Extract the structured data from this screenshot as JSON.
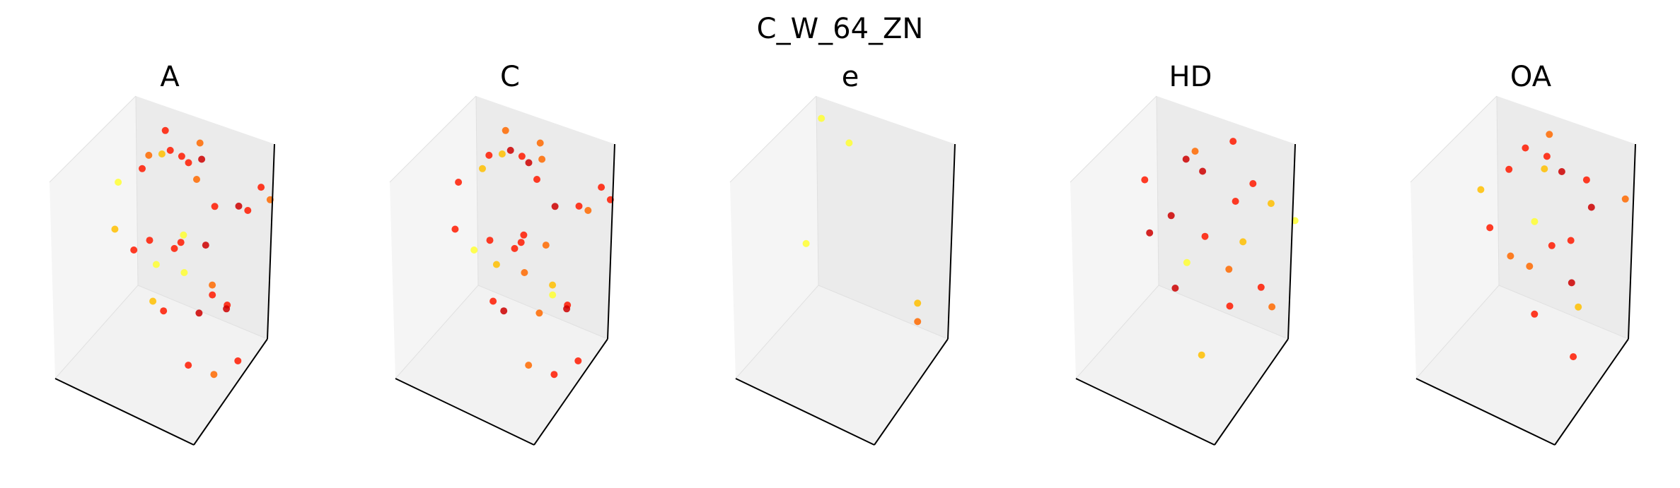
{
  "figure": {
    "title": "C_W_64_ZN"
  },
  "chart_data": [
    {
      "type": "scatter",
      "title": "A",
      "grid": false,
      "colors": [
        "#ffff33",
        "#ffbf00",
        "#ff6a00",
        "#ff1a00",
        "#cc0000"
      ],
      "points": [
        [
          -0.6,
          -0.4,
          0.82
        ],
        [
          -0.6,
          0.0,
          0.88
        ],
        [
          -0.3,
          -0.5,
          0.96
        ],
        [
          -0.1,
          -0.3,
          0.9
        ],
        [
          0.0,
          0.0,
          0.92
        ],
        [
          0.4,
          -0.2,
          0.5
        ],
        [
          0.6,
          0.1,
          0.42
        ],
        [
          0.9,
          -0.1,
          0.55
        ],
        [
          1.0,
          0.3,
          0.5
        ],
        [
          0.7,
          0.5,
          0.45
        ],
        [
          -1.0,
          0.0,
          0.4
        ],
        [
          -1.2,
          -0.3,
          0.35
        ],
        [
          -0.8,
          0.4,
          0.45
        ],
        [
          -0.4,
          0.6,
          0.38
        ],
        [
          -0.2,
          0.2,
          0.42
        ],
        [
          -0.9,
          -0.8,
          0.2
        ],
        [
          -0.5,
          -0.9,
          0.15
        ],
        [
          0.1,
          -0.6,
          0.25
        ],
        [
          0.3,
          -0.8,
          0.1
        ],
        [
          -0.7,
          0.7,
          0.22
        ],
        [
          -0.3,
          -0.2,
          -0.1
        ],
        [
          0.1,
          0.0,
          -0.05
        ],
        [
          0.5,
          -0.4,
          -0.15
        ],
        [
          -0.8,
          -0.1,
          -0.2
        ],
        [
          -0.5,
          0.3,
          -0.25
        ],
        [
          -0.2,
          -0.6,
          -0.5
        ],
        [
          0.2,
          -0.3,
          -0.55
        ],
        [
          0.4,
          0.1,
          -0.6
        ],
        [
          -0.6,
          -0.3,
          -0.65
        ],
        [
          0.0,
          0.3,
          -0.7
        ],
        [
          0.3,
          -0.7,
          -0.85
        ],
        [
          0.6,
          -0.5,
          -0.95
        ],
        [
          0.8,
          -0.2,
          -0.9
        ],
        [
          0.1,
          0.5,
          -0.9
        ],
        [
          -0.9,
          0.2,
          -0.6
        ]
      ],
      "point_levels": [
        2,
        3,
        1,
        3,
        2,
        3,
        4,
        3,
        2,
        3,
        3,
        0,
        3,
        4,
        2,
        1,
        3,
        3,
        0,
        3,
        3,
        4,
        2,
        3,
        0,
        3,
        4,
        3,
        1,
        3,
        3,
        2,
        3,
        4,
        0
      ]
    },
    {
      "type": "scatter",
      "title": "C",
      "grid": false,
      "colors": [
        "#ffff33",
        "#ffbf00",
        "#ff6a00",
        "#ff1a00",
        "#cc0000"
      ],
      "points": [
        [
          -0.6,
          -0.4,
          0.82
        ],
        [
          -0.6,
          0.0,
          0.88
        ],
        [
          -0.3,
          -0.5,
          0.96
        ],
        [
          -0.1,
          -0.3,
          0.9
        ],
        [
          0.0,
          0.0,
          0.92
        ],
        [
          0.4,
          -0.2,
          0.5
        ],
        [
          0.6,
          0.1,
          0.42
        ],
        [
          0.9,
          -0.1,
          0.55
        ],
        [
          1.0,
          0.3,
          0.5
        ],
        [
          0.7,
          0.5,
          0.45
        ],
        [
          -1.0,
          0.0,
          0.4
        ],
        [
          -1.2,
          -0.3,
          0.35
        ],
        [
          -0.8,
          0.4,
          0.45
        ],
        [
          -0.4,
          0.6,
          0.38
        ],
        [
          -0.2,
          0.2,
          0.42
        ],
        [
          -0.9,
          -0.8,
          0.2
        ],
        [
          -0.5,
          -0.9,
          0.15
        ],
        [
          0.1,
          -0.6,
          0.25
        ],
        [
          0.3,
          -0.8,
          0.1
        ],
        [
          -0.7,
          0.7,
          0.22
        ],
        [
          -0.3,
          -0.2,
          -0.1
        ],
        [
          0.1,
          0.0,
          -0.05
        ],
        [
          0.5,
          -0.4,
          -0.15
        ],
        [
          -0.8,
          -0.1,
          -0.2
        ],
        [
          -0.5,
          0.3,
          -0.25
        ],
        [
          -0.2,
          -0.6,
          -0.5
        ],
        [
          0.2,
          -0.3,
          -0.55
        ],
        [
          0.4,
          0.1,
          -0.6
        ],
        [
          -0.6,
          -0.3,
          -0.65
        ],
        [
          0.0,
          0.3,
          -0.7
        ],
        [
          0.3,
          -0.7,
          -0.85
        ],
        [
          0.6,
          -0.5,
          -0.95
        ],
        [
          0.8,
          -0.2,
          -0.9
        ],
        [
          0.1,
          0.5,
          -0.9
        ],
        [
          -0.9,
          0.2,
          -0.6
        ]
      ],
      "point_levels": [
        3,
        2,
        1,
        3,
        2,
        4,
        3,
        2,
        3,
        3,
        1,
        3,
        4,
        2,
        3,
        3,
        0,
        3,
        2,
        4,
        3,
        2,
        1,
        3,
        3,
        4,
        2,
        3,
        3,
        0,
        2,
        3,
        3,
        4,
        1
      ]
    },
    {
      "type": "scatter",
      "title": "e",
      "grid": false,
      "colors": [
        "#ffff33",
        "#ffbf00",
        "#ff6a00",
        "#ff1a00",
        "#cc0000"
      ],
      "points": [
        [
          -0.95,
          -0.1,
          0.95
        ],
        [
          -0.9,
          0.5,
          0.45
        ],
        [
          -1.0,
          -0.4,
          -0.15
        ],
        [
          0.5,
          0.2,
          -0.6
        ],
        [
          0.5,
          0.2,
          -0.78
        ]
      ],
      "point_levels": [
        0,
        0,
        0,
        1,
        2
      ]
    },
    {
      "type": "scatter",
      "title": "HD",
      "grid": false,
      "colors": [
        "#ffff33",
        "#ffbf00",
        "#ff6a00",
        "#ff1a00",
        "#cc0000"
      ],
      "points": [
        [
          -0.3,
          -0.2,
          0.85
        ],
        [
          0.0,
          0.3,
          0.8
        ],
        [
          -0.6,
          0.0,
          0.6
        ],
        [
          0.4,
          -0.2,
          0.55
        ],
        [
          0.8,
          0.1,
          0.5
        ],
        [
          -1.1,
          -0.3,
          0.4
        ],
        [
          -0.6,
          0.4,
          0.3
        ],
        [
          0.2,
          0.5,
          0.35
        ],
        [
          1.0,
          0.4,
          0.25
        ],
        [
          -0.8,
          -0.6,
          0.1
        ],
        [
          -0.2,
          -0.1,
          0.0
        ],
        [
          0.5,
          -0.5,
          0.05
        ],
        [
          -1.0,
          0.2,
          -0.15
        ],
        [
          0.1,
          0.4,
          -0.2
        ],
        [
          0.7,
          0.0,
          -0.3
        ],
        [
          -0.5,
          -0.4,
          -0.45
        ],
        [
          0.3,
          -0.2,
          -0.5
        ],
        [
          -0.8,
          0.3,
          -0.6
        ],
        [
          0.6,
          0.4,
          -0.7
        ],
        [
          0.1,
          -0.6,
          -0.85
        ]
      ],
      "point_levels": [
        2,
        3,
        4,
        3,
        1,
        3,
        4,
        3,
        0,
        4,
        3,
        2,
        4,
        1,
        3,
        4,
        3,
        0,
        2,
        1
      ]
    },
    {
      "type": "scatter",
      "title": "OA",
      "grid": false,
      "colors": [
        "#ffff33",
        "#ffbf00",
        "#ff6a00",
        "#ff1a00",
        "#cc0000"
      ],
      "points": [
        [
          -0.4,
          -0.3,
          0.9
        ],
        [
          -0.2,
          0.0,
          0.95
        ],
        [
          0.0,
          -0.4,
          0.85
        ],
        [
          0.3,
          0.2,
          0.55
        ],
        [
          0.6,
          -0.1,
          0.5
        ],
        [
          0.9,
          0.3,
          0.48
        ],
        [
          -0.9,
          0.0,
          0.42
        ],
        [
          -1.1,
          -0.4,
          0.35
        ],
        [
          -0.6,
          0.5,
          0.4
        ],
        [
          -0.2,
          0.3,
          0.45
        ],
        [
          -0.8,
          -0.6,
          0.15
        ],
        [
          -0.3,
          -0.8,
          0.1
        ],
        [
          0.2,
          -0.5,
          0.2
        ],
        [
          -0.6,
          0.2,
          -0.1
        ],
        [
          0.1,
          0.1,
          -0.05
        ],
        [
          0.4,
          -0.3,
          -0.2
        ],
        [
          -0.4,
          -0.2,
          -0.3
        ],
        [
          -0.1,
          -0.5,
          -0.55
        ],
        [
          0.3,
          0.0,
          -0.6
        ],
        [
          0.5,
          -0.4,
          -0.85
        ]
      ],
      "point_levels": [
        3,
        2,
        1,
        3,
        4,
        2,
        3,
        1,
        3,
        4,
        3,
        2,
        3,
        0,
        3,
        4,
        2,
        3,
        1,
        3
      ]
    }
  ]
}
